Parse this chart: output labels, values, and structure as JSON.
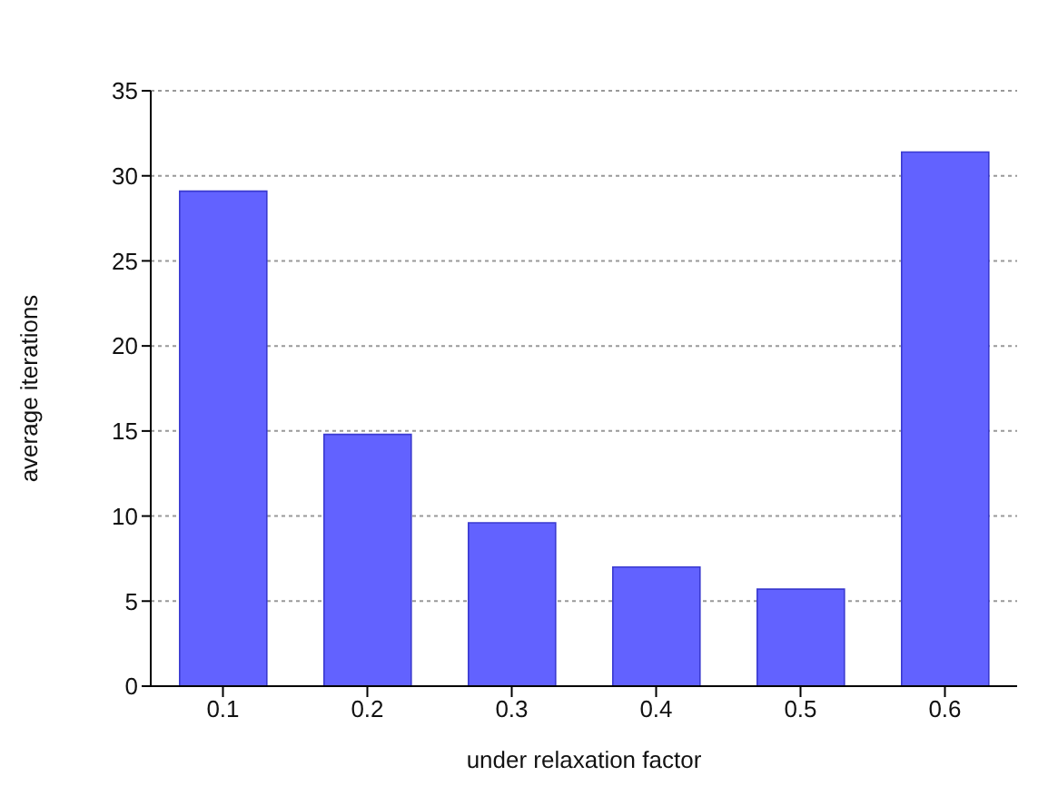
{
  "chart_data": {
    "type": "bar",
    "xlabel": "under relaxation factor",
    "ylabel": "average iterations",
    "categories": [
      "0.1",
      "0.2",
      "0.3",
      "0.4",
      "0.5",
      "0.6"
    ],
    "values": [
      29.1,
      14.8,
      9.6,
      7.0,
      5.7,
      31.4
    ],
    "color": "#6262ff",
    "ylim": [
      0,
      35
    ],
    "yticks": [
      0,
      5,
      10,
      15,
      20,
      25,
      30,
      35
    ],
    "grid": "y"
  }
}
